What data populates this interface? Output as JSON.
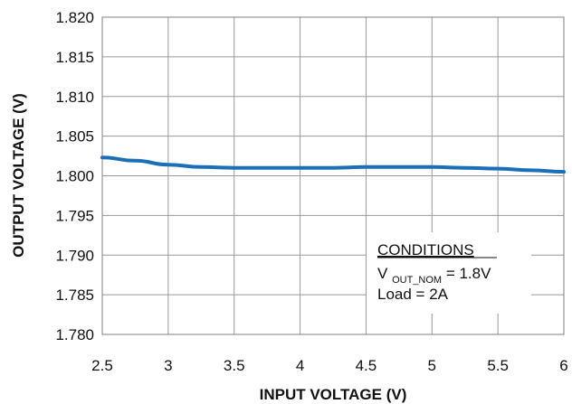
{
  "chart_data": {
    "type": "line",
    "xlabel": "INPUT VOLTAGE (V)",
    "ylabel": "OUTPUT  VOLTAGE (V)",
    "xlim": [
      2.5,
      6
    ],
    "ylim": [
      1.78,
      1.82
    ],
    "x_ticks": [
      "2.5",
      "3",
      "3.5",
      "4",
      "4.5",
      "5",
      "5.5",
      "6"
    ],
    "y_ticks": [
      "1.780",
      "1.785",
      "1.790",
      "1.795",
      "1.800",
      "1.805",
      "1.810",
      "1.815",
      "1.820"
    ],
    "grid": true,
    "series": [
      {
        "color": "#1a6fb8",
        "x": [
          2.5,
          2.75,
          3.0,
          3.25,
          3.5,
          3.75,
          4.0,
          4.25,
          4.5,
          4.75,
          5.0,
          5.25,
          5.5,
          5.75,
          6.0
        ],
        "y": [
          1.8023,
          1.8019,
          1.8014,
          1.8011,
          1.801,
          1.801,
          1.801,
          1.801,
          1.8011,
          1.8011,
          1.8011,
          1.801,
          1.8009,
          1.8007,
          1.8005
        ]
      }
    ],
    "annotation": {
      "heading": "CONDITIONS",
      "line1_main": "V",
      "line1_sub": "OUT_NOM",
      "line1_rest": " = 1.8V",
      "line2": "Load = 2A"
    }
  }
}
